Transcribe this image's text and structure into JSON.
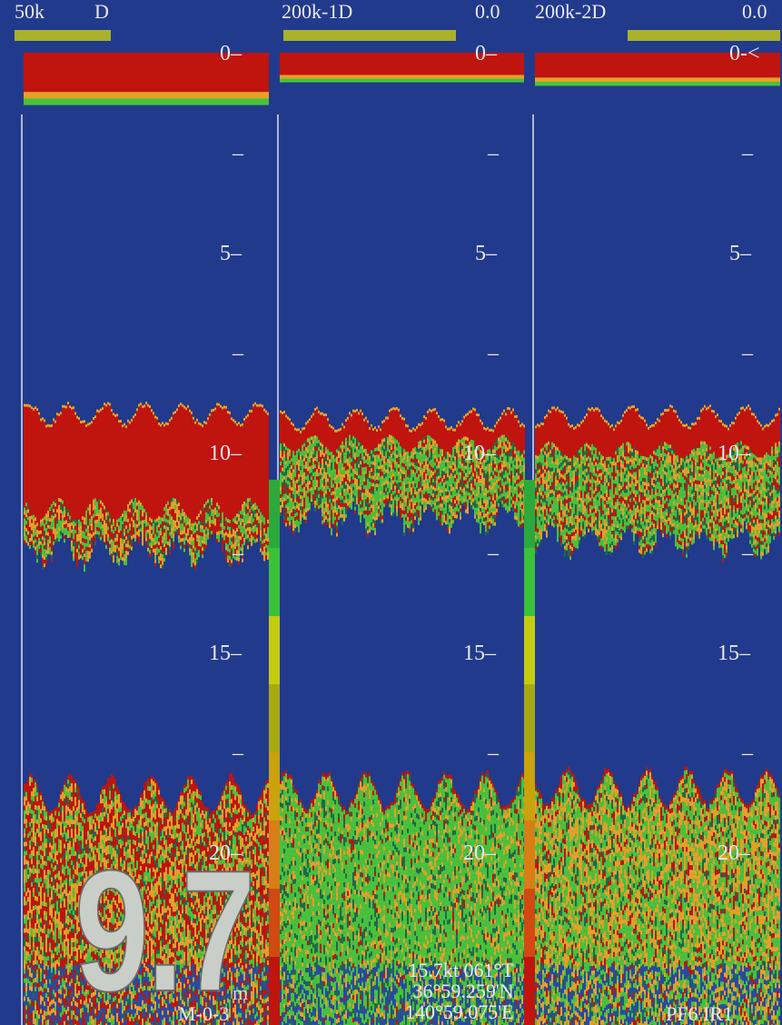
{
  "panels": [
    {
      "freq_label": "50k",
      "mode_label": "D",
      "value_label": ""
    },
    {
      "freq_label": "200k-1D",
      "mode_label": "",
      "value_label": "0.0"
    },
    {
      "freq_label": "200k-2D",
      "mode_label": "",
      "value_label": "0.0"
    }
  ],
  "scale_ticks": [
    "0",
    "5",
    "10",
    "15",
    "20"
  ],
  "zero_marker": "0-<",
  "depth": {
    "value": "9.7",
    "unit": "m"
  },
  "navigation": {
    "speed_course": "15.7kt 061°T",
    "latitude": "36°59.259'N",
    "longitude": "140°59.075'E"
  },
  "mode_code": "M-0-3",
  "status_code": "PF6  IR1",
  "colors": {
    "background": "#223a8c",
    "strong": "#c0140e",
    "medium": "#e2a228",
    "weak": "#49c23b",
    "accent_bar": "#a9b22a"
  },
  "color_scale": [
    "#c0140e",
    "#d04a12",
    "#d77e16",
    "#c9a20c",
    "#a8a812",
    "#c4cc10",
    "#3bc13a",
    "#2ca93a"
  ]
}
